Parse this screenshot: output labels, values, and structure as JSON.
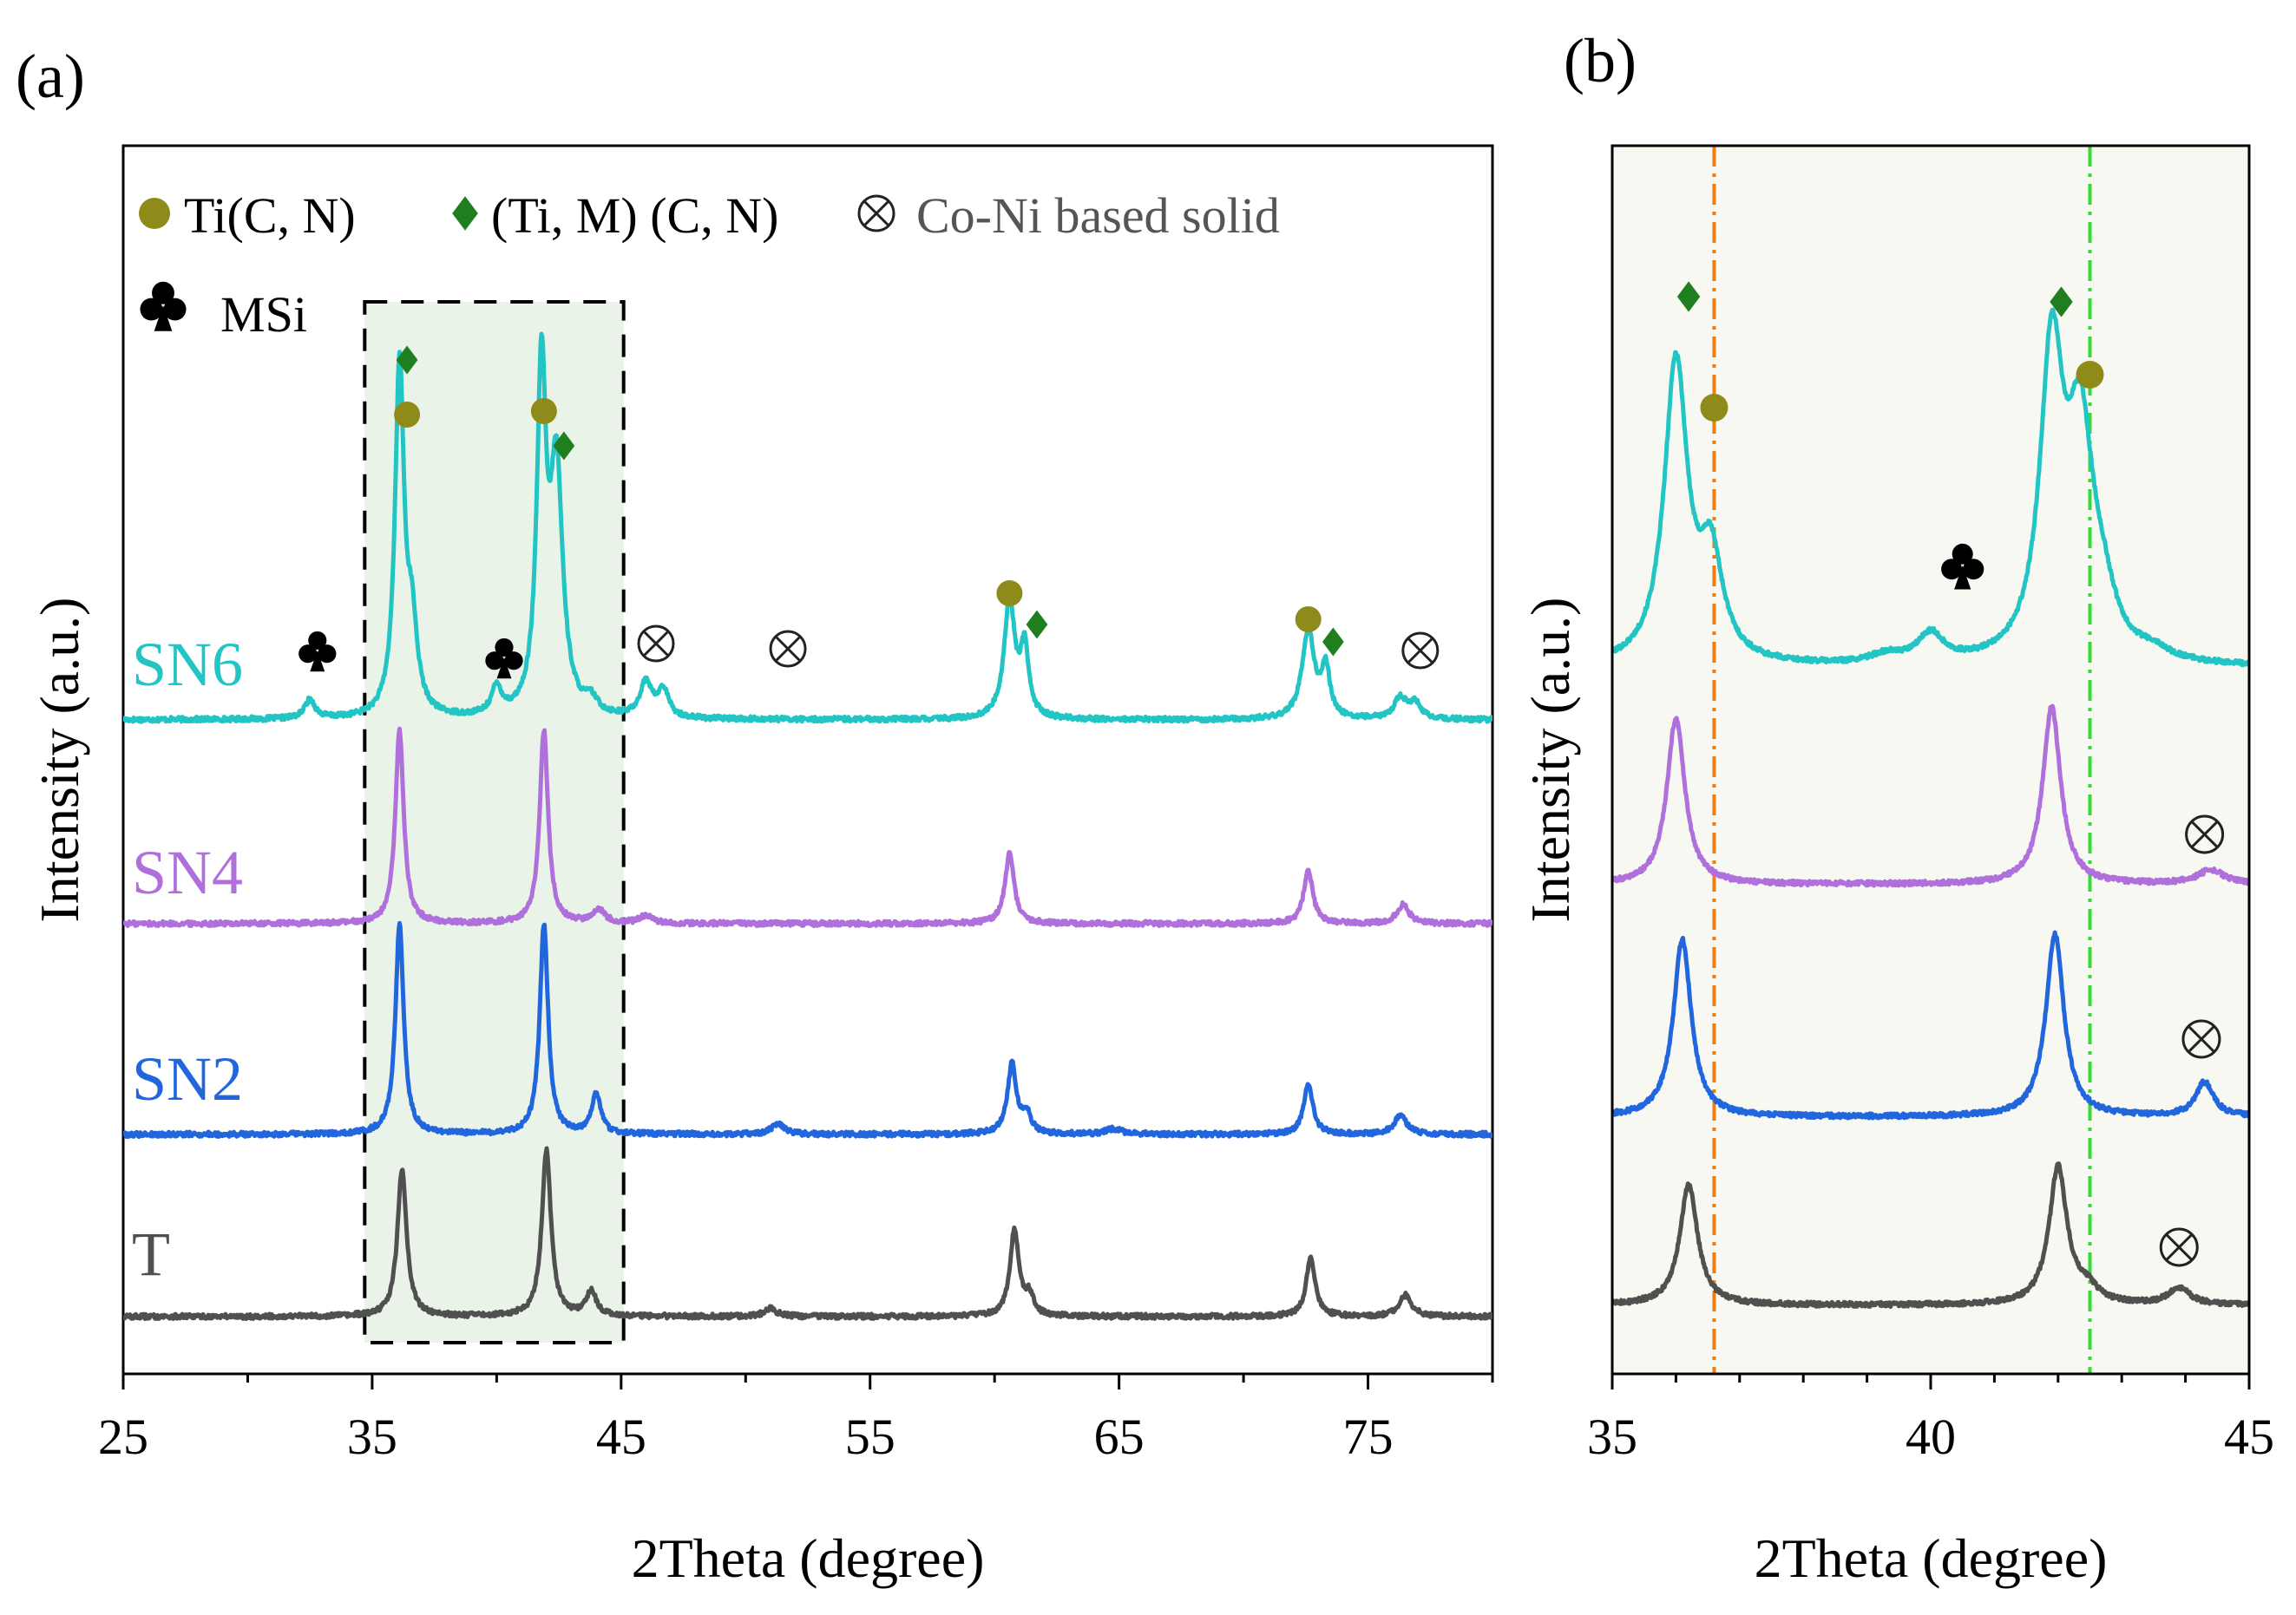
{
  "chart_data": [
    {
      "panel_label": "(a)",
      "type": "line",
      "xlabel": "2Theta (degree)",
      "ylabel": "Intensity (a.u.)",
      "xlim": [
        25,
        80
      ],
      "xticks": [
        25,
        35,
        45,
        55,
        65,
        75
      ],
      "highlight_range": [
        34.7,
        45.1
      ],
      "legend": [
        {
          "symbol": "circle",
          "label": "Ti(C, N)",
          "color": "#8f8b1a"
        },
        {
          "symbol": "diamond",
          "label": "(Ti, M) (C, N)",
          "color": "#1f7f1f"
        },
        {
          "symbol": "otimes",
          "label": "Co-Ni based solid",
          "color": "#222222"
        },
        {
          "symbol": "club",
          "label": "MSi",
          "color": "#000000"
        }
      ],
      "series": [
        {
          "name": "SN6",
          "color": "#22c4c4",
          "baseline": 0.0,
          "peaks": [
            [
              32.5,
              0.07,
              0.25
            ],
            [
              36.1,
              1.3,
              0.22
            ],
            [
              36.6,
              0.3,
              0.25
            ],
            [
              40.0,
              0.1,
              0.25
            ],
            [
              41.8,
              1.25,
              0.22
            ],
            [
              42.4,
              0.9,
              0.3
            ],
            [
              43.8,
              0.05,
              0.3
            ],
            [
              46.0,
              0.13,
              0.3
            ],
            [
              46.7,
              0.1,
              0.25
            ],
            [
              60.6,
              0.44,
              0.26
            ],
            [
              61.2,
              0.25,
              0.2
            ],
            [
              72.6,
              0.33,
              0.3
            ],
            [
              73.3,
              0.18,
              0.2
            ],
            [
              76.3,
              0.08,
              0.3
            ],
            [
              76.9,
              0.06,
              0.25
            ]
          ]
        },
        {
          "name": "SN4",
          "color": "#b070dc",
          "baseline": 0.0,
          "peaks": [
            [
              36.1,
              0.72,
              0.2
            ],
            [
              41.9,
              0.72,
              0.2
            ],
            [
              44.1,
              0.05,
              0.3
            ],
            [
              46.0,
              0.03,
              0.3
            ],
            [
              60.6,
              0.26,
              0.22
            ],
            [
              72.6,
              0.2,
              0.22
            ],
            [
              76.4,
              0.07,
              0.3
            ]
          ]
        },
        {
          "name": "SN2",
          "color": "#2266dd",
          "baseline": 0.0,
          "peaks": [
            [
              36.1,
              0.78,
              0.2
            ],
            [
              41.9,
              0.78,
              0.2
            ],
            [
              44.0,
              0.15,
              0.22
            ],
            [
              51.3,
              0.04,
              0.3
            ],
            [
              60.7,
              0.26,
              0.22
            ],
            [
              61.3,
              0.07,
              0.2
            ],
            [
              64.8,
              0.02,
              0.4
            ],
            [
              72.6,
              0.19,
              0.22
            ],
            [
              76.3,
              0.07,
              0.3
            ]
          ]
        },
        {
          "name": "T",
          "color": "#505050",
          "baseline": 0.0,
          "peaks": [
            [
              36.2,
              0.55,
              0.22
            ],
            [
              42.0,
              0.62,
              0.22
            ],
            [
              43.8,
              0.09,
              0.25
            ],
            [
              51.0,
              0.03,
              0.3
            ],
            [
              60.8,
              0.32,
              0.22
            ],
            [
              61.4,
              0.07,
              0.2
            ],
            [
              72.7,
              0.22,
              0.22
            ],
            [
              76.5,
              0.08,
              0.3
            ]
          ]
        }
      ],
      "annotations": [
        {
          "series": "SN6",
          "symbol": "club",
          "x": 32.8
        },
        {
          "series": "SN6",
          "symbol": "club",
          "x": 40.3
        },
        {
          "series": "SN6",
          "symbol": "diamond",
          "x": 36.4
        },
        {
          "series": "SN6",
          "symbol": "circle",
          "x": 36.4
        },
        {
          "series": "SN6",
          "symbol": "circle",
          "x": 41.9
        },
        {
          "series": "SN6",
          "symbol": "diamond",
          "x": 42.7
        },
        {
          "series": "SN6",
          "symbol": "otimes",
          "x": 46.4
        },
        {
          "series": "SN6",
          "symbol": "otimes",
          "x": 51.7
        },
        {
          "series": "SN6",
          "symbol": "circle",
          "x": 60.6
        },
        {
          "series": "SN6",
          "symbol": "diamond",
          "x": 61.7
        },
        {
          "series": "SN6",
          "symbol": "circle",
          "x": 72.6
        },
        {
          "series": "SN6",
          "symbol": "diamond",
          "x": 73.6
        },
        {
          "series": "SN6",
          "symbol": "otimes",
          "x": 77.1
        }
      ]
    },
    {
      "panel_label": "(b)",
      "type": "line",
      "xlabel": "2Theta (degree)",
      "ylabel": "Intensity (a.u.)",
      "xlim": [
        35,
        45
      ],
      "xticks": [
        35,
        40,
        45
      ],
      "reference_lines": [
        {
          "x": 36.6,
          "color": "#f07d10"
        },
        {
          "x": 42.5,
          "color": "#33dd33"
        }
      ],
      "series": [
        {
          "name": "SN6",
          "color": "#22c4c4",
          "peaks": [
            [
              36.0,
              1.05,
              0.22
            ],
            [
              36.55,
              0.35,
              0.22
            ],
            [
              39.3,
              0.03,
              0.3
            ],
            [
              40.0,
              0.1,
              0.25
            ],
            [
              41.9,
              1.05,
              0.22
            ],
            [
              42.35,
              0.75,
              0.25
            ],
            [
              42.7,
              0.14,
              0.25
            ],
            [
              43.5,
              0.03,
              0.3
            ]
          ]
        },
        {
          "name": "SN4",
          "color": "#b070dc",
          "peaks": [
            [
              36.0,
              0.58,
              0.17
            ],
            [
              41.9,
              0.62,
              0.17
            ],
            [
              44.4,
              0.05,
              0.25
            ]
          ]
        },
        {
          "name": "SN2",
          "color": "#2266dd",
          "peaks": [
            [
              36.1,
              0.62,
              0.17
            ],
            [
              41.95,
              0.64,
              0.17
            ],
            [
              44.3,
              0.12,
              0.17
            ]
          ]
        },
        {
          "name": "T",
          "color": "#505050",
          "peaks": [
            [
              36.2,
              0.42,
              0.17
            ],
            [
              42.0,
              0.48,
              0.17
            ],
            [
              42.45,
              0.05,
              0.2
            ],
            [
              43.9,
              0.06,
              0.2
            ]
          ]
        }
      ],
      "annotations": [
        {
          "series": "SN6",
          "symbol": "diamond",
          "x": 36.2
        },
        {
          "series": "SN6",
          "symbol": "circle",
          "x": 36.6
        },
        {
          "series": "SN6",
          "symbol": "diamond",
          "x": 42.05
        },
        {
          "series": "SN6",
          "symbol": "circle",
          "x": 42.5
        },
        {
          "series": "SN6",
          "symbol": "club",
          "x": 40.5
        },
        {
          "series": "SN4",
          "symbol": "otimes",
          "x": 44.3
        },
        {
          "series": "SN2",
          "symbol": "otimes",
          "x": 44.25
        },
        {
          "series": "T",
          "symbol": "otimes",
          "x": 43.9
        }
      ]
    }
  ]
}
